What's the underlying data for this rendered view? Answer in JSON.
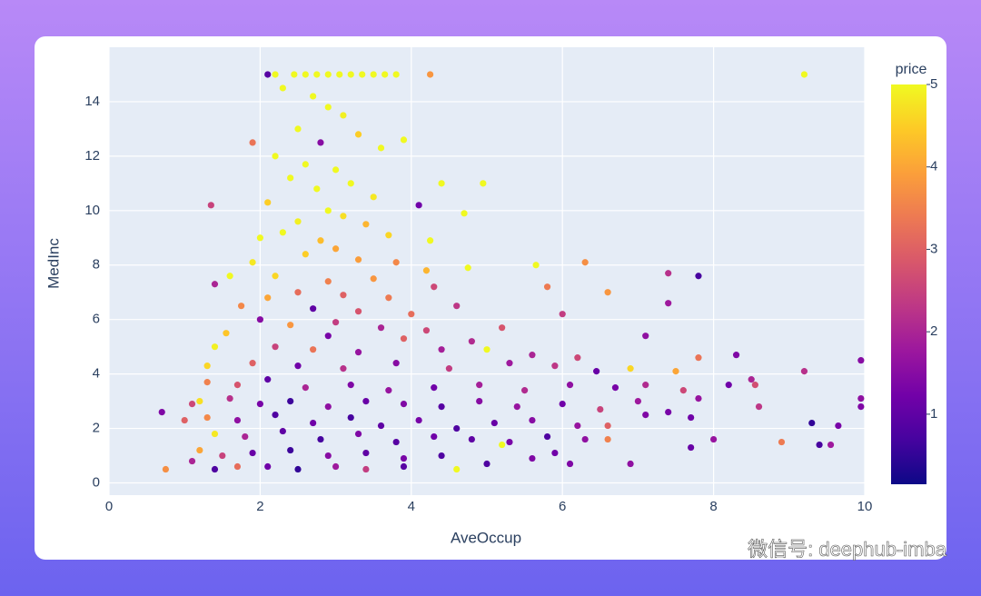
{
  "chart_data": {
    "type": "scatter",
    "xlabel": "AveOccup",
    "ylabel": "MedInc",
    "colorbar_title": "price",
    "watermark": "微信号: deephub-imba",
    "xlim": [
      0,
      10
    ],
    "xticks": [
      0,
      2,
      4,
      6,
      8,
      10
    ],
    "ylim": [
      -0.45,
      16
    ],
    "yticks": [
      0,
      2,
      4,
      6,
      8,
      10,
      12,
      14
    ],
    "clim": [
      0.15,
      5
    ],
    "cticks": [
      1,
      2,
      3,
      4,
      5
    ],
    "colorscale": [
      "#0d0887",
      "#46039f",
      "#7201a8",
      "#9c179e",
      "#bd3786",
      "#d8576b",
      "#ed7953",
      "#fb9f3a",
      "#fdca26",
      "#f0f921"
    ],
    "grid": true,
    "x": [
      2.2,
      2.45,
      2.6,
      2.75,
      2.9,
      3.05,
      3.2,
      3.35,
      3.5,
      3.65,
      3.8,
      2.1,
      4.25,
      9.2,
      2.3,
      2.7,
      2.9,
      3.1,
      2.5,
      3.3,
      2.8,
      1.9,
      2.2,
      3.6,
      3.9,
      2.6,
      3.0,
      2.4,
      3.2,
      4.4,
      4.95,
      2.75,
      3.5,
      2.1,
      1.35,
      4.1,
      2.9,
      3.1,
      4.7,
      2.5,
      3.4,
      2.3,
      3.7,
      2.0,
      4.25,
      2.8,
      3.0,
      2.6,
      1.9,
      3.3,
      3.8,
      4.2,
      4.75,
      5.65,
      6.3,
      2.2,
      2.9,
      3.5,
      1.6,
      7.4,
      7.8,
      2.5,
      3.1,
      1.4,
      2.1,
      3.7,
      4.3,
      5.8,
      6.6,
      1.75,
      2.7,
      3.3,
      4.0,
      4.6,
      6.0,
      7.4,
      2.0,
      2.4,
      3.0,
      3.6,
      4.2,
      5.2,
      1.55,
      2.9,
      3.9,
      4.8,
      7.1,
      1.4,
      2.2,
      2.7,
      3.3,
      4.4,
      5.0,
      5.6,
      6.2,
      1.3,
      1.9,
      2.5,
      3.1,
      3.8,
      4.5,
      5.3,
      5.9,
      6.9,
      7.5,
      7.8,
      8.3,
      9.2,
      9.95,
      6.45,
      1.3,
      1.7,
      2.1,
      2.6,
      3.2,
      3.7,
      4.3,
      4.9,
      5.5,
      6.1,
      6.7,
      7.1,
      7.6,
      8.2,
      8.5,
      8.55,
      1.2,
      1.6,
      2.0,
      2.4,
      2.9,
      3.4,
      3.9,
      4.4,
      4.9,
      5.4,
      6.0,
      6.5,
      7.0,
      7.4,
      7.8,
      8.6,
      9.95,
      9.95,
      0.7,
      1.1,
      1.3,
      1.7,
      2.2,
      2.7,
      3.2,
      3.6,
      4.1,
      4.6,
      5.1,
      5.6,
      6.2,
      6.6,
      7.1,
      7.7,
      8.0,
      9.3,
      9.65,
      1.0,
      1.4,
      1.8,
      2.3,
      2.8,
      3.3,
      3.8,
      4.3,
      4.8,
      5.3,
      5.8,
      6.3,
      6.6,
      7.7,
      8.9,
      9.4,
      9.55,
      1.2,
      1.5,
      1.9,
      2.4,
      2.9,
      3.4,
      3.9,
      4.4,
      5.2,
      5.9,
      6.1,
      6.9,
      0.75,
      1.1,
      1.4,
      1.7,
      2.1,
      2.5,
      3.0,
      3.4,
      3.9,
      4.6,
      5.0,
      5.6
    ],
    "y": [
      15,
      15,
      15,
      15,
      15,
      15,
      15,
      15,
      15,
      15,
      15,
      15,
      15,
      15,
      14.5,
      14.2,
      13.8,
      13.5,
      13,
      12.8,
      12.5,
      12.5,
      12,
      12.3,
      12.6,
      11.7,
      11.5,
      11.2,
      11,
      11,
      11,
      10.8,
      10.5,
      10.3,
      10.2,
      10.2,
      10,
      9.8,
      9.9,
      9.6,
      9.5,
      9.2,
      9.1,
      9.0,
      8.9,
      8.9,
      8.6,
      8.4,
      8.1,
      8.2,
      8.1,
      7.8,
      7.9,
      8.0,
      8.1,
      7.6,
      7.4,
      7.5,
      7.6,
      7.7,
      7.6,
      7.0,
      6.9,
      7.3,
      6.8,
      6.8,
      7.2,
      7.2,
      7.0,
      6.5,
      6.4,
      6.3,
      6.2,
      6.5,
      6.2,
      6.6,
      6.0,
      5.8,
      5.9,
      5.7,
      5.6,
      5.7,
      5.5,
      5.4,
      5.3,
      5.2,
      5.4,
      5.0,
      5.0,
      4.9,
      4.8,
      4.9,
      4.9,
      4.7,
      4.6,
      4.3,
      4.4,
      4.3,
      4.2,
      4.4,
      4.2,
      4.4,
      4.3,
      4.2,
      4.1,
      4.6,
      4.7,
      4.1,
      4.5,
      4.1,
      3.7,
      3.6,
      3.8,
      3.5,
      3.6,
      3.4,
      3.5,
      3.6,
      3.4,
      3.6,
      3.5,
      3.6,
      3.4,
      3.6,
      3.8,
      3.6,
      3.0,
      3.1,
      2.9,
      3.0,
      2.8,
      3.0,
      2.9,
      2.8,
      3.0,
      2.8,
      2.9,
      2.7,
      3.0,
      2.6,
      3.1,
      2.8,
      3.1,
      2.8,
      2.6,
      2.9,
      2.4,
      2.3,
      2.5,
      2.2,
      2.4,
      2.1,
      2.3,
      2.0,
      2.2,
      2.3,
      2.1,
      2.1,
      2.5,
      2.4,
      1.6,
      2.2,
      2.1,
      2.3,
      1.8,
      1.7,
      1.9,
      1.6,
      1.8,
      1.5,
      1.7,
      1.6,
      1.5,
      1.7,
      1.6,
      1.6,
      1.3,
      1.5,
      1.4,
      1.4,
      1.2,
      1.0,
      1.1,
      1.2,
      1.0,
      1.1,
      0.9,
      1.0,
      1.4,
      1.1,
      0.7,
      0.7,
      0.5,
      0.8,
      0.5,
      0.6,
      0.6,
      0.5,
      0.6,
      0.5,
      0.6,
      0.5,
      0.7,
      0.9
    ],
    "price": [
      5,
      5,
      5,
      5,
      5,
      5,
      5,
      5,
      5,
      5,
      5,
      0.9,
      3.8,
      5,
      5,
      5,
      5,
      4.9,
      5,
      4.5,
      1.5,
      3.3,
      5,
      5,
      5,
      5,
      5,
      5,
      5,
      5,
      5,
      5,
      4.8,
      4.5,
      2.5,
      1.2,
      5,
      4.7,
      5,
      4.9,
      4.2,
      5,
      4.6,
      5,
      5,
      4.3,
      4.0,
      4.5,
      4.8,
      3.9,
      3.6,
      4.2,
      5,
      5,
      3.7,
      4.6,
      3.5,
      3.8,
      5,
      2.2,
      0.7,
      3.2,
      3.0,
      2.0,
      4.0,
      3.4,
      2.6,
      3.4,
      3.8,
      3.6,
      1.0,
      2.8,
      3.2,
      2.3,
      2.4,
      1.8,
      1.5,
      3.8,
      2.4,
      2.0,
      2.6,
      2.8,
      4.4,
      1.3,
      3.0,
      2.1,
      1.6,
      4.9,
      2.5,
      3.3,
      1.7,
      1.9,
      5,
      2.0,
      2.6,
      4.6,
      3.0,
      1.2,
      2.2,
      1.5,
      2.4,
      1.8,
      2.3,
      4.6,
      4.0,
      3.3,
      1.4,
      2.2,
      1.5,
      1.1,
      3.5,
      2.8,
      1.0,
      2.0,
      1.4,
      1.7,
      1.2,
      1.9,
      2.1,
      1.6,
      1.3,
      2.1,
      2.6,
      1.2,
      2.0,
      2.7,
      4.7,
      2.2,
      1.3,
      0.6,
      1.6,
      1.1,
      1.4,
      0.9,
      1.5,
      1.7,
      1.2,
      2.5,
      1.8,
      1.3,
      1.7,
      2.3,
      1.6,
      1.4,
      1.4,
      2.6,
      3.6,
      1.6,
      0.8,
      1.2,
      0.7,
      1.0,
      1.3,
      0.8,
      1.1,
      1.5,
      1.7,
      3.0,
      1.4,
      1.2,
      1.7,
      0.5,
      1.3,
      3.0,
      4.8,
      2.0,
      1.0,
      0.7,
      1.4,
      0.9,
      1.2,
      1.0,
      1.3,
      0.8,
      1.6,
      3.5,
      1.1,
      3.4,
      0.7,
      1.8,
      4.0,
      2.5,
      1.1,
      0.6,
      1.5,
      1.0,
      1.3,
      0.8,
      5,
      1.2,
      1.4,
      1.6,
      3.7,
      2.0,
      0.8,
      3.2,
      1.2,
      0.5,
      1.8,
      2.4,
      0.9,
      5,
      0.8,
      1.4
    ]
  }
}
